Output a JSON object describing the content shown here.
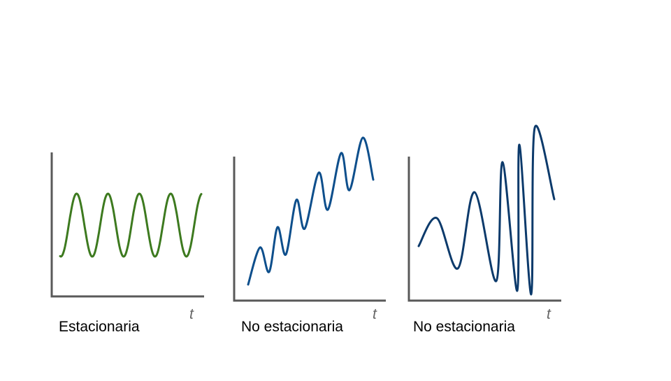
{
  "panels": [
    {
      "caption": "Estacionaria",
      "axis_symbol": "t",
      "color": "#3d7a1f",
      "description_kind": "stationary-oscillation"
    },
    {
      "caption": "No estacionaria",
      "axis_symbol": "t",
      "color": "#0e4f8c",
      "description_kind": "trend-oscillation"
    },
    {
      "caption": "No estacionaria",
      "axis_symbol": "t",
      "color": "#0c3a6b",
      "description_kind": "growing-amplitude-frequency"
    }
  ]
}
